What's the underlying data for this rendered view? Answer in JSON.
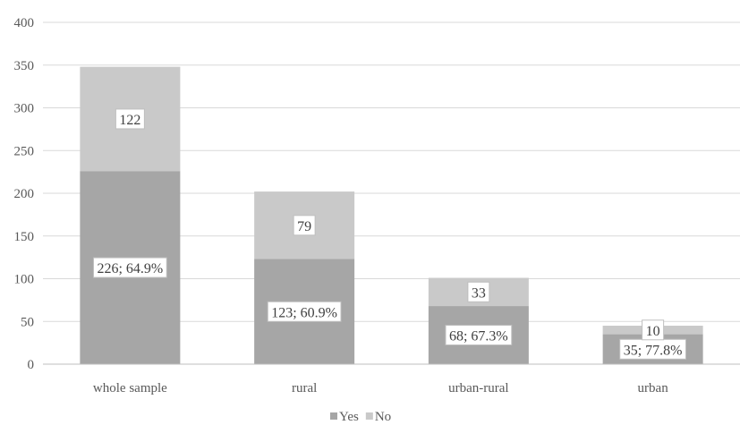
{
  "chart_data": {
    "type": "bar",
    "stacked": true,
    "categories": [
      "whole sample",
      "rural",
      "urban-rural",
      "urban"
    ],
    "series": [
      {
        "name": "Yes",
        "values": [
          226,
          123,
          68,
          35
        ],
        "labels": [
          "226; 64.9%",
          "123; 60.9%",
          "68; 67.3%",
          "35; 77.8%"
        ],
        "color": "#a6a6a6"
      },
      {
        "name": "No",
        "values": [
          122,
          79,
          33,
          10
        ],
        "labels": [
          "122",
          "79",
          "33",
          "10"
        ],
        "color": "#c9c9c9"
      }
    ],
    "ylim": [
      0,
      400
    ],
    "yticks": [
      0,
      50,
      100,
      150,
      200,
      250,
      300,
      350,
      400
    ],
    "grid": true,
    "legend_position": "bottom",
    "xlabel": "",
    "ylabel": "",
    "title": ""
  }
}
